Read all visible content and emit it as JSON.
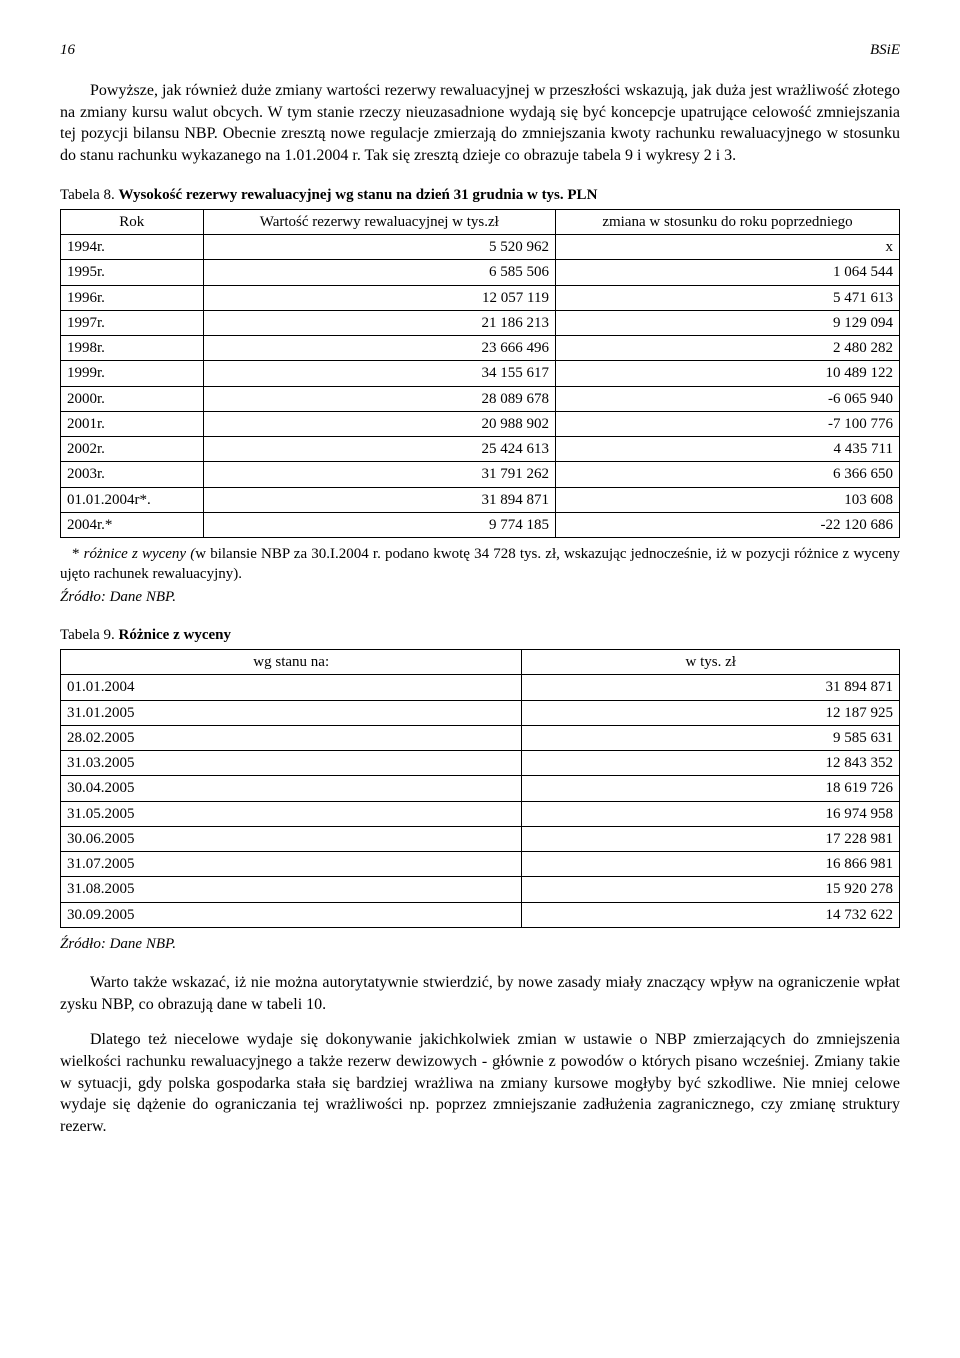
{
  "header": {
    "page_number": "16",
    "doc_label": "BSiE"
  },
  "paragraphs": {
    "p1": "Powyższe, jak również duże zmiany wartości rezerwy rewaluacyjnej w przeszłości wskazują, jak duża jest wrażliwość złotego na zmiany kursu walut obcych. W tym stanie rzeczy nieuzasadnione wydają się być koncepcje upatrujące celowość zmniejszania tej pozycji bilansu NBP. Obecnie zresztą nowe regulacje zmierzają do zmniejszania kwoty rachunku rewaluacyjnego w stosunku do stanu rachunku wykazanego na 1.01.2004 r. Tak się zresztą dzieje co obrazuje tabela 9 i wykresy 2 i 3.",
    "p2": "Warto także wskazać, iż nie można autorytatywnie stwierdzić, by nowe zasady miały znaczący wpływ na ograniczenie wpłat zysku NBP, co obrazują dane w tabeli 10.",
    "p3": "Dlatego też niecelowe wydaje się dokonywanie jakichkolwiek zmian w ustawie o NBP zmierzających do zmniejszenia wielkości rachunku rewaluacyjnego a także rezerw dewizowych - głównie z powodów o których pisano wcześniej. Zmiany takie w sytuacji, gdy polska gospodarka stała się bardziej wrażliwa na zmiany kursowe mogłyby być szkodliwe. Nie mniej celowe wydaje się dążenie do ograniczania tej wrażliwości np. poprzez zmniejszanie zadłużenia zagranicznego, czy zmianę struktury rezerw."
  },
  "table8": {
    "caption_prefix": "Tabela 8. ",
    "caption_bold": "Wysokość rezerwy rewaluacyjnej wg stanu na dzień 31 grudnia w tys. PLN",
    "headers": {
      "c1": "Rok",
      "c2": "Wartość rezerwy rewaluacyjnej w tys.zł",
      "c3": "zmiana w stosunku do roku poprzedniego"
    },
    "rows": [
      {
        "year": "1994r.",
        "value": "5 520 962",
        "change": "x"
      },
      {
        "year": "1995r.",
        "value": "6 585 506",
        "change": "1 064 544"
      },
      {
        "year": "1996r.",
        "value": "12 057 119",
        "change": "5 471 613"
      },
      {
        "year": "1997r.",
        "value": "21 186 213",
        "change": "9 129 094"
      },
      {
        "year": "1998r.",
        "value": "23 666 496",
        "change": "2 480 282"
      },
      {
        "year": "1999r.",
        "value": "34 155 617",
        "change": "10 489 122"
      },
      {
        "year": "2000r.",
        "value": "28 089 678",
        "change": "-6 065 940"
      },
      {
        "year": "2001r.",
        "value": "20 988 902",
        "change": "-7 100 776"
      },
      {
        "year": "2002r.",
        "value": "25 424 613",
        "change": "4 435 711"
      },
      {
        "year": "2003r.",
        "value": "31 791 262",
        "change": "6 366 650"
      },
      {
        "year": "01.01.2004r*.",
        "value": "31 894 871",
        "change": "103 608"
      },
      {
        "year": "2004r.*",
        "value": "9 774 185",
        "change": "-22 120 686"
      }
    ],
    "footnote": " * różnice z wyceny (w bilansie NBP za 30.I.2004 r. podano kwotę 34 728 tys. zł, wskazując jednocześnie, iż w pozycji różnice z wyceny ujęto rachunek rewaluacyjny).",
    "source": "Źródło: Dane NBP."
  },
  "table9": {
    "caption_prefix": "Tabela 9. ",
    "caption_bold": "Różnice z wyceny",
    "headers": {
      "c1": "wg stanu na:",
      "c2": "w tys. zł"
    },
    "rows": [
      {
        "date": "01.01.2004",
        "value": "31 894 871"
      },
      {
        "date": "31.01.2005",
        "value": "12 187 925"
      },
      {
        "date": "28.02.2005",
        "value": "9 585 631"
      },
      {
        "date": "31.03.2005",
        "value": "12 843 352"
      },
      {
        "date": "30.04.2005",
        "value": "18 619 726"
      },
      {
        "date": "31.05.2005",
        "value": "16 974 958"
      },
      {
        "date": "30.06.2005",
        "value": "17 228 981"
      },
      {
        "date": "31.07.2005",
        "value": "16 866 981"
      },
      {
        "date": "31.08.2005",
        "value": "15 920 278"
      },
      {
        "date": "30.09.2005",
        "value": "14 732 622"
      }
    ],
    "source": "Źródło: Dane NBP."
  }
}
